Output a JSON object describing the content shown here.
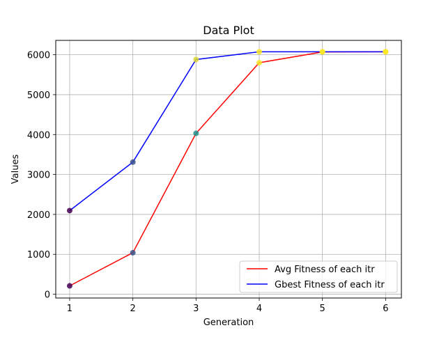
{
  "chart_data": {
    "type": "line",
    "title": "Data Plot",
    "xlabel": "Generation",
    "ylabel": "Values",
    "x": [
      1,
      2,
      3,
      4,
      5,
      6
    ],
    "xticks": [
      1,
      2,
      3,
      4,
      5,
      6
    ],
    "yticks": [
      0,
      1000,
      2000,
      3000,
      4000,
      5000,
      6000
    ],
    "xlim": [
      0.78,
      6.25
    ],
    "ylim": [
      -95,
      6360
    ],
    "grid": true,
    "legend_position": "lower-right",
    "series": [
      {
        "name": "Avg Fitness of each itr",
        "color": "#ff0000",
        "values": [
          210,
          1040,
          4030,
          5800,
          6070,
          6075
        ]
      },
      {
        "name": "Gbest Fitness of each itr",
        "color": "#0000ff",
        "values": [
          2095,
          3310,
          5880,
          6075,
          6075,
          6075
        ]
      }
    ],
    "scatter_markers": {
      "colormap": "viridis",
      "points": [
        {
          "x": 1,
          "y": 210,
          "color": "#440154"
        },
        {
          "x": 1,
          "y": 2095,
          "color": "#440154"
        },
        {
          "x": 2,
          "y": 1040,
          "color": "#3b528b"
        },
        {
          "x": 2,
          "y": 3310,
          "color": "#3b528b"
        },
        {
          "x": 3,
          "y": 4030,
          "color": "#21918c"
        },
        {
          "x": 3,
          "y": 5880,
          "color": "#d9d633"
        },
        {
          "x": 4,
          "y": 5800,
          "color": "#fde725"
        },
        {
          "x": 4,
          "y": 6075,
          "color": "#fde725"
        },
        {
          "x": 5,
          "y": 6070,
          "color": "#fde725"
        },
        {
          "x": 5,
          "y": 6075,
          "color": "#fde725"
        },
        {
          "x": 6,
          "y": 6075,
          "color": "#fde725"
        },
        {
          "x": 6,
          "y": 6075,
          "color": "#fde725"
        }
      ]
    }
  }
}
